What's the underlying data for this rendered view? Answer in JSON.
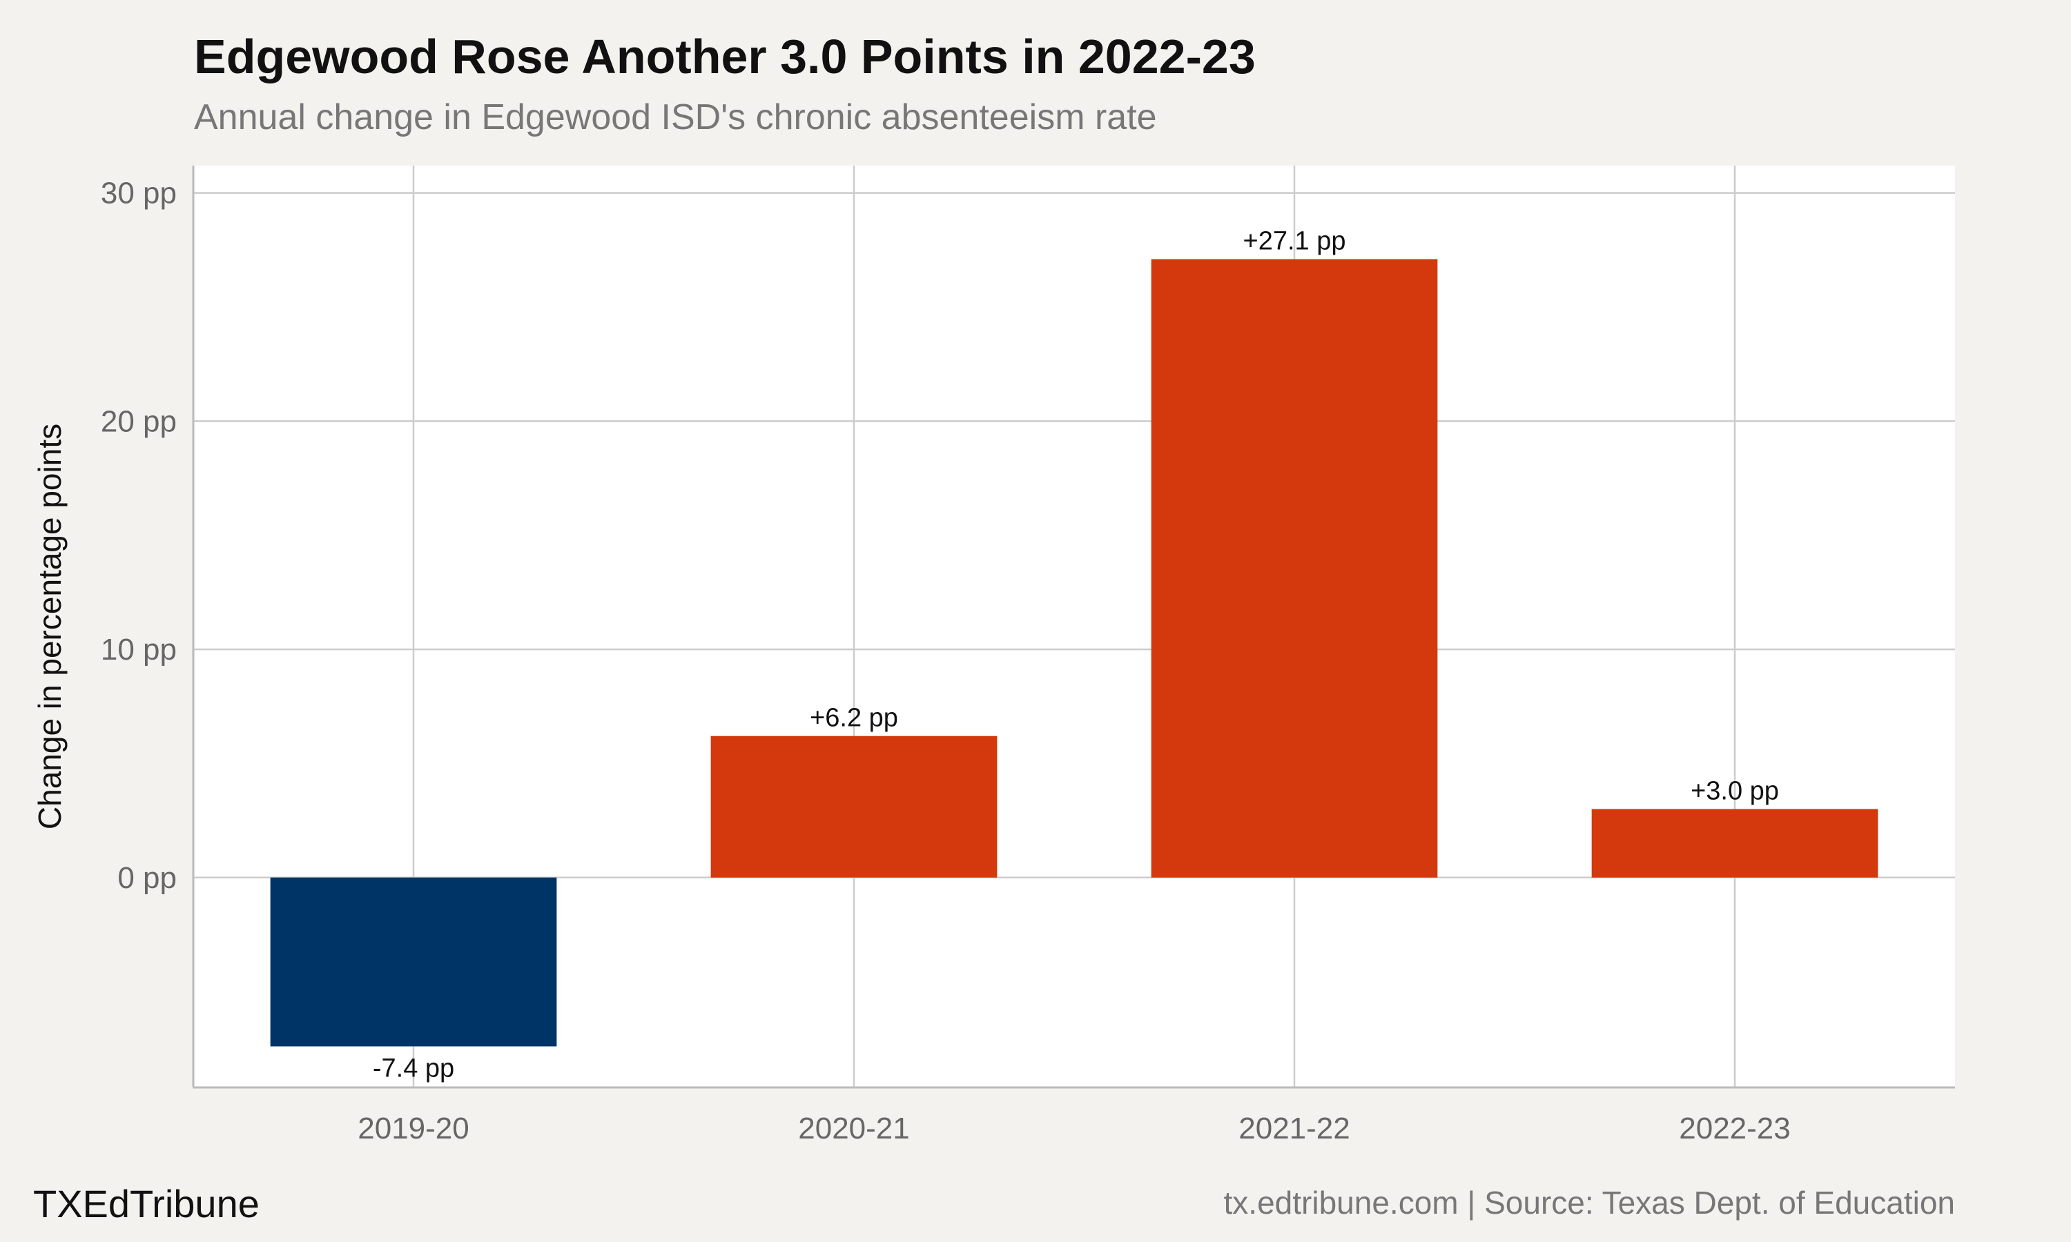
{
  "chart_data": {
    "type": "bar",
    "title": "Edgewood Rose Another 3.0 Points in 2022-23",
    "subtitle": "Annual change in Edgewood ISD's chronic absenteeism rate",
    "categories": [
      "2019-20",
      "2020-21",
      "2021-22",
      "2022-23"
    ],
    "values": [
      -7.4,
      6.2,
      27.1,
      3.0
    ],
    "data_labels": [
      "-7.4 pp",
      "+6.2 pp",
      "+27.1 pp",
      "+3.0 pp"
    ],
    "xlabel": "",
    "ylabel": "Change in percentage points",
    "ylim": [
      -9.2,
      31.2
    ],
    "yticks": [
      0,
      10,
      20,
      30
    ],
    "ytick_labels": [
      "0 pp",
      "10 pp",
      "20 pp",
      "30 pp"
    ],
    "grid": true,
    "colors": {
      "negative": "#003366",
      "positive": "#d4380d",
      "plot_background": "#ffffff",
      "page_background": "#f4f2ee",
      "grid": "#cccccc"
    }
  },
  "footer": {
    "brand": "TXEdTribune",
    "source": "tx.edtribune.com | Source: Texas Dept. of Education"
  }
}
